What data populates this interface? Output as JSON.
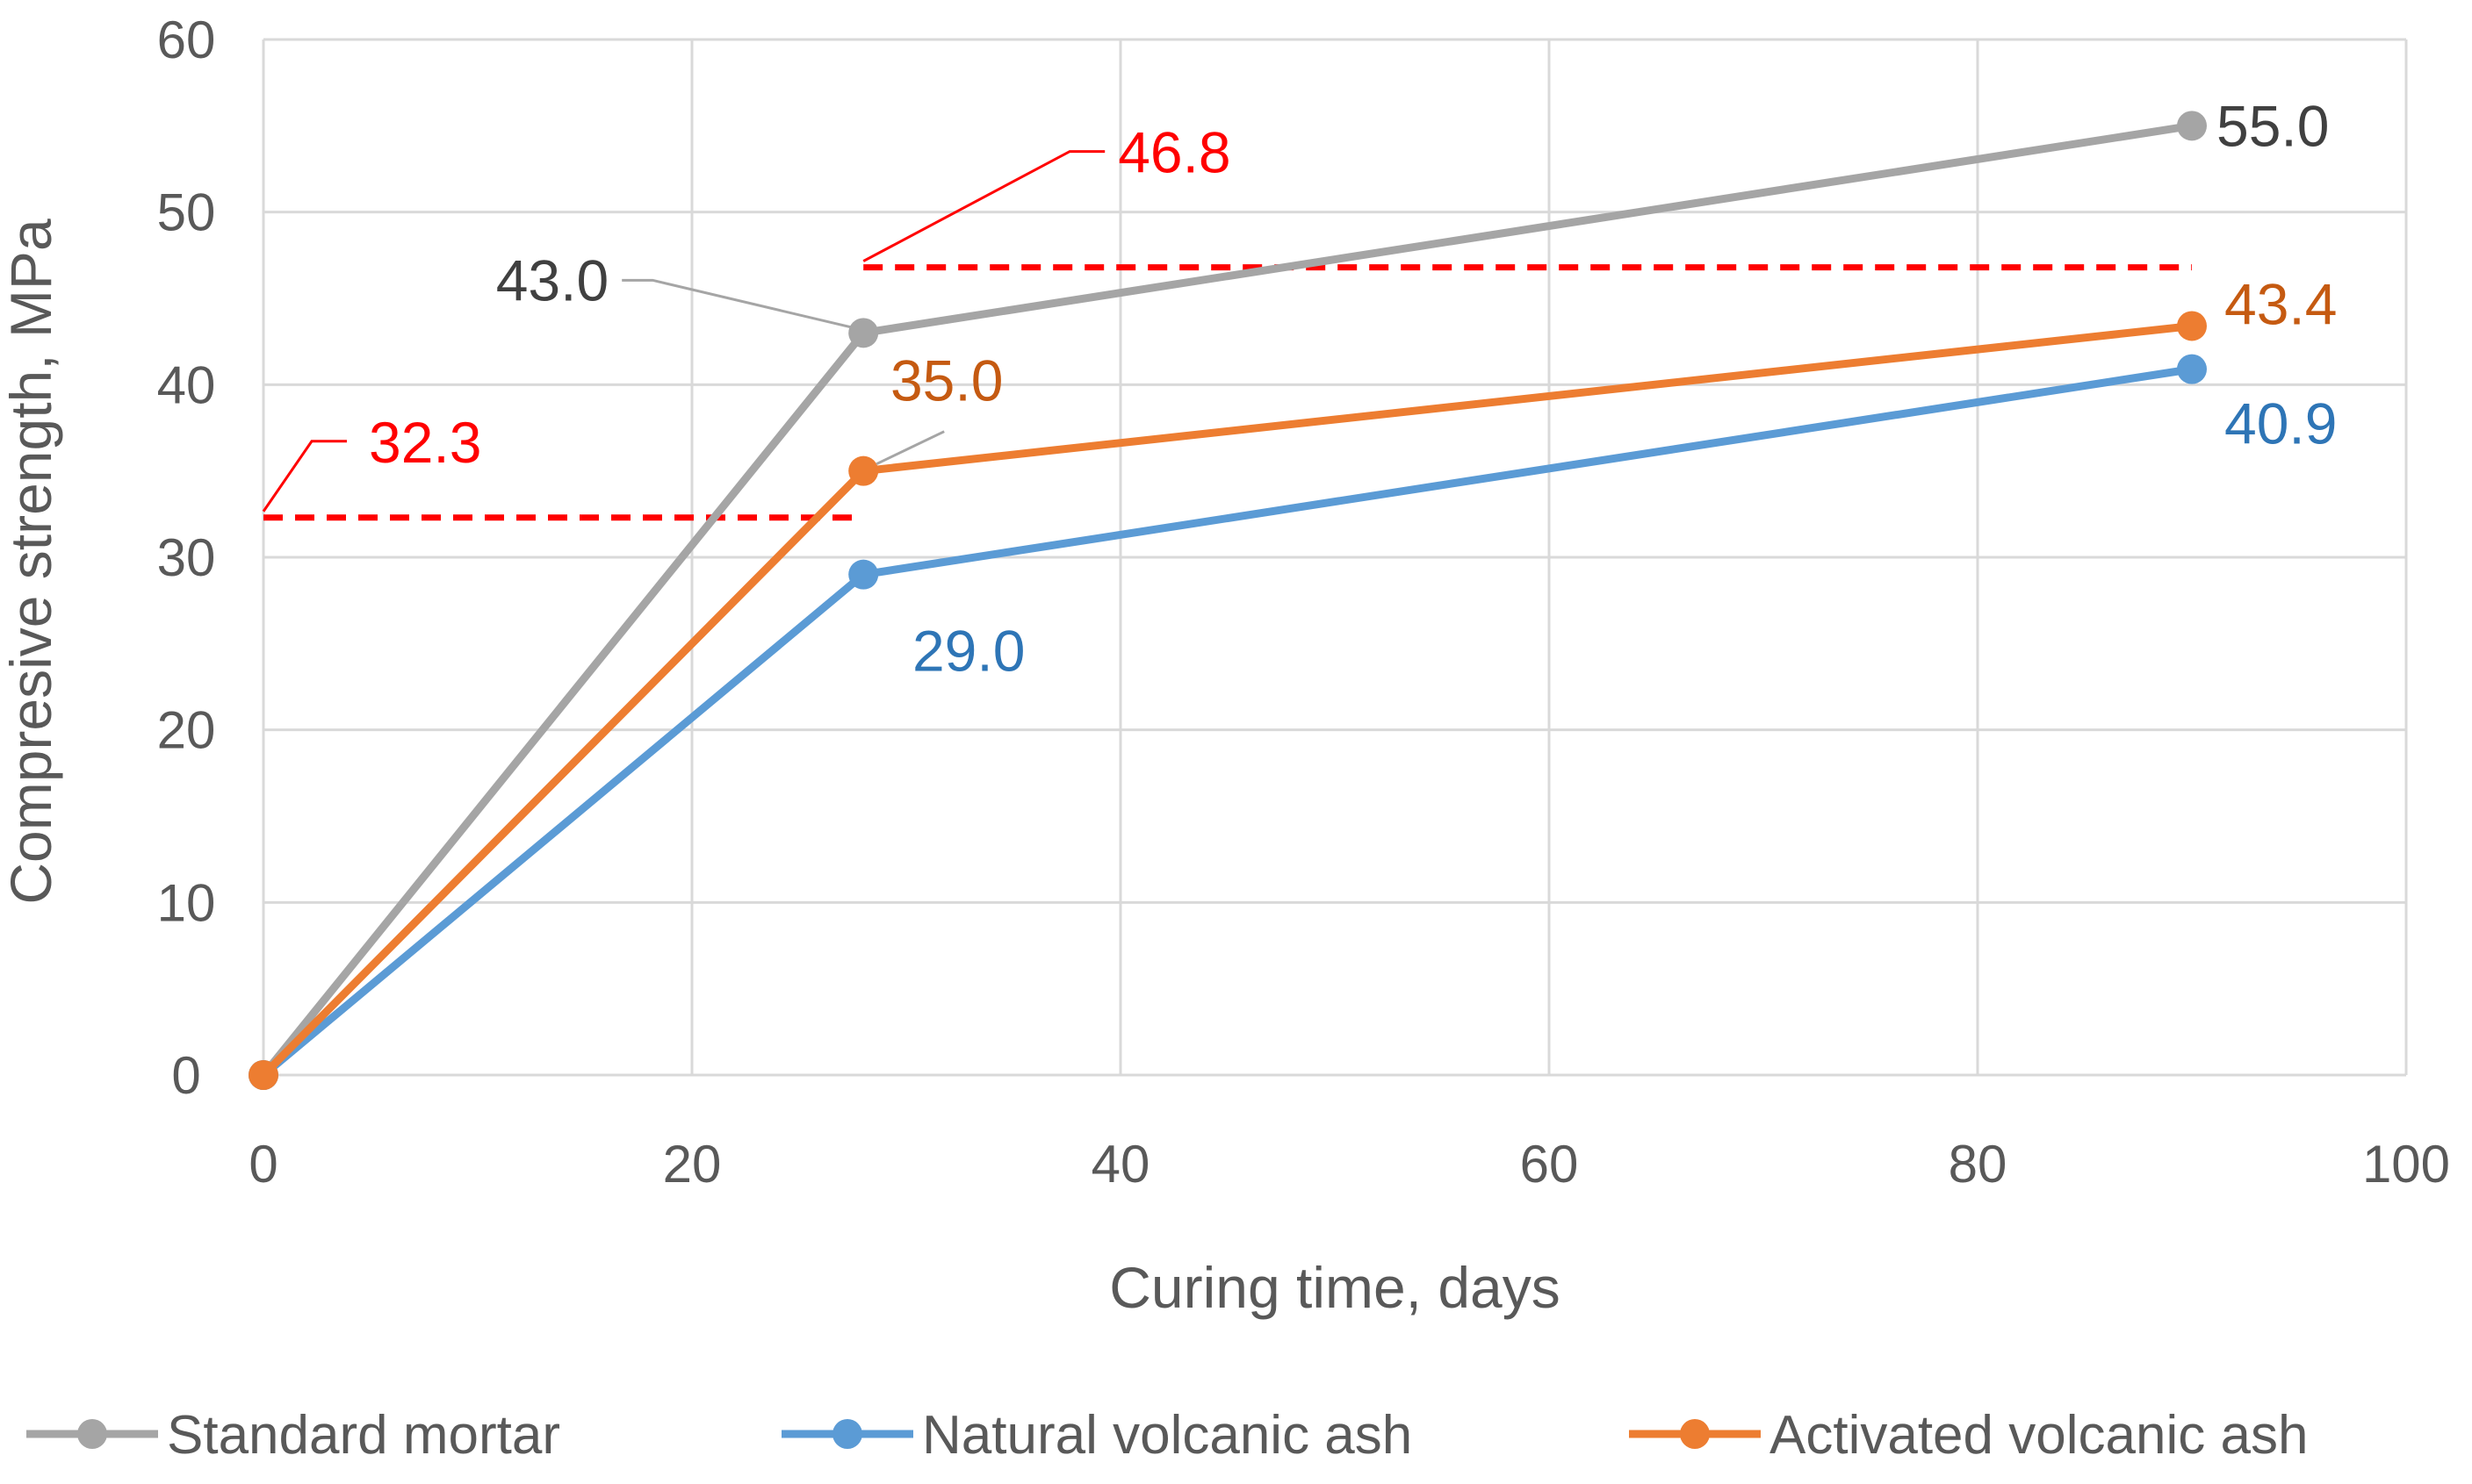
{
  "chart_data": {
    "type": "line",
    "title": "",
    "xlabel": "Curing time, days",
    "ylabel": "Compresive strength, MPa",
    "xlim": [
      0,
      100
    ],
    "ylim": [
      0,
      60
    ],
    "x_ticks": [
      0,
      20,
      40,
      60,
      80,
      100
    ],
    "y_ticks": [
      0,
      10,
      20,
      30,
      40,
      50,
      60
    ],
    "grid": true,
    "legend_position": "bottom",
    "series": [
      {
        "name": "Standard mortar",
        "color": "#a5a5a5",
        "label_color": "#404040",
        "points": [
          {
            "x": 0,
            "y": 0
          },
          {
            "x": 28,
            "y": 43.0
          },
          {
            "x": 90,
            "y": 55.0
          }
        ],
        "labels": [
          "",
          "43.0",
          "55.0"
        ]
      },
      {
        "name": "Natural volcanic ash",
        "color": "#5b9bd5",
        "label_color": "#2e75b6",
        "points": [
          {
            "x": 0,
            "y": 0
          },
          {
            "x": 28,
            "y": 29.0
          },
          {
            "x": 90,
            "y": 40.9
          }
        ],
        "labels": [
          "",
          "29.0",
          "40.9"
        ]
      },
      {
        "name": "Activated volcanic ash",
        "color": "#ed7d31",
        "label_color": "#c55a11",
        "points": [
          {
            "x": 0,
            "y": 0
          },
          {
            "x": 28,
            "y": 35.0
          },
          {
            "x": 90,
            "y": 43.4
          }
        ],
        "labels": [
          "",
          "35.0",
          "43.4"
        ]
      }
    ],
    "reference_lines": [
      {
        "y": 32.3,
        "x_start": 0,
        "x_end": 28,
        "label": "32.3",
        "color": "#ff0000"
      },
      {
        "y": 46.8,
        "x_start": 28,
        "x_end": 90,
        "label": "46.8",
        "color": "#ff0000"
      }
    ]
  }
}
